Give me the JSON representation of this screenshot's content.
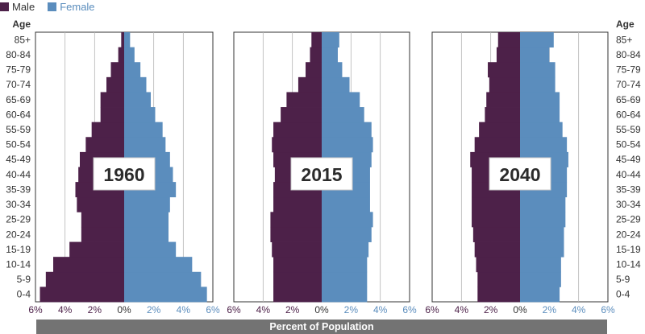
{
  "legend": [
    {
      "label": "Male",
      "color": "#4d2149"
    },
    {
      "label": "Female",
      "color": "#5b8dbd"
    }
  ],
  "age_header": "Age",
  "footer_label": "Percent of Population",
  "colors": {
    "male": "#4d2149",
    "female": "#5b8dbd",
    "tick_male": "#4d2149",
    "tick_female": "#5b8dbd",
    "tick_zero": "#333333"
  },
  "chart_data": {
    "type": "bar",
    "orientation": "horizontal-butterfly",
    "categories": [
      "0-4",
      "5-9",
      "10-14",
      "15-19",
      "20-24",
      "25-29",
      "30-34",
      "35-39",
      "40-44",
      "45-49",
      "50-54",
      "55-59",
      "60-64",
      "65-69",
      "70-74",
      "75-79",
      "80-84",
      "85+"
    ],
    "xlim": [
      -6,
      6
    ],
    "x_ticks": [
      "6%",
      "4%",
      "2%",
      "0%",
      "2%",
      "4%",
      "6%"
    ],
    "grid": true,
    "panels": [
      {
        "title": "1960",
        "series": [
          {
            "name": "Male",
            "values": [
              5.7,
              5.3,
              4.8,
              3.7,
              2.9,
              2.9,
              3.2,
              3.3,
              3.1,
              3.0,
              2.6,
              2.2,
              1.6,
              1.6,
              1.2,
              0.9,
              0.4,
              0.2
            ]
          },
          {
            "name": "Female",
            "values": [
              5.6,
              5.2,
              4.6,
              3.5,
              3.0,
              3.0,
              3.1,
              3.5,
              3.3,
              3.1,
              2.8,
              2.6,
              2.1,
              1.8,
              1.5,
              1.1,
              0.7,
              0.4
            ]
          }
        ]
      },
      {
        "title": "2015",
        "series": [
          {
            "name": "Male",
            "values": [
              3.3,
              3.3,
              3.3,
              3.4,
              3.5,
              3.5,
              3.3,
              3.3,
              3.2,
              3.3,
              3.4,
              3.3,
              2.8,
              2.4,
              1.6,
              1.1,
              0.8,
              0.7
            ]
          },
          {
            "name": "Female",
            "values": [
              3.1,
              3.1,
              3.1,
              3.2,
              3.4,
              3.5,
              3.3,
              3.3,
              3.3,
              3.4,
              3.5,
              3.4,
              2.9,
              2.6,
              1.9,
              1.4,
              1.1,
              1.2
            ]
          }
        ]
      },
      {
        "title": "2040",
        "series": [
          {
            "name": "Male",
            "values": [
              2.9,
              2.9,
              3.0,
              3.1,
              3.2,
              3.3,
              3.3,
              3.3,
              3.3,
              3.4,
              3.1,
              2.8,
              2.4,
              2.3,
              2.1,
              2.2,
              1.6,
              1.5
            ]
          },
          {
            "name": "Female",
            "values": [
              2.7,
              2.8,
              2.8,
              3.0,
              3.0,
              3.1,
              3.1,
              3.2,
              3.2,
              3.3,
              3.2,
              2.9,
              2.7,
              2.7,
              2.4,
              2.4,
              2.0,
              2.3
            ]
          }
        ]
      }
    ]
  }
}
